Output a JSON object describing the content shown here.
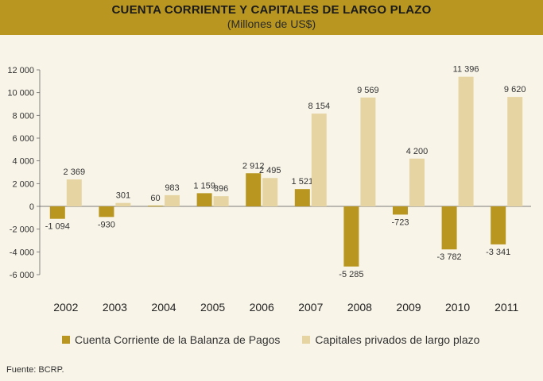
{
  "header": {
    "title": "CUENTA CORRIENTE Y CAPITALES DE LARGO PLAZO",
    "subtitle": "(Millones de US$)"
  },
  "source": "Fuente: BCRP.",
  "colors": {
    "cuenta_corriente": "#b8961f",
    "capitales": "#e6d5a3",
    "header_bg": "#b8961f",
    "background": "#f8f4e8"
  },
  "chart_data": {
    "type": "bar",
    "title": "CUENTA CORRIENTE Y CAPITALES DE LARGO PLAZO",
    "subtitle": "(Millones de US$)",
    "categories": [
      "2002",
      "2003",
      "2004",
      "2005",
      "2006",
      "2007",
      "2008",
      "2009",
      "2010",
      "2011"
    ],
    "series": [
      {
        "name": "Cuenta Corriente de la Balanza de Pagos",
        "values": [
          -1094,
          -930,
          60,
          1159,
          2912,
          1521,
          -5285,
          -723,
          -3782,
          -3341
        ],
        "labels": [
          "-1 094",
          "-930",
          "60",
          "1 159",
          "2 912",
          "1 521",
          "-5 285",
          "-723",
          "-3 782",
          "-3 341"
        ]
      },
      {
        "name": "Capitales privados de largo plazo",
        "values": [
          2369,
          301,
          983,
          896,
          2495,
          8154,
          9569,
          4200,
          11396,
          9620
        ],
        "labels": [
          "2 369",
          "301",
          "983",
          "896",
          "2 495",
          "8 154",
          "9 569",
          "4 200",
          "11 396",
          "9 620"
        ]
      }
    ],
    "ylim": [
      -6000,
      12000
    ],
    "yticks": [
      -6000,
      -4000,
      -2000,
      0,
      2000,
      4000,
      6000,
      8000,
      10000,
      12000
    ],
    "ytick_labels": [
      "-6 000",
      "-4 000",
      "-2 000",
      "0",
      "2 000",
      "4 000",
      "6 000",
      "8 000",
      "10 000",
      "12 000"
    ],
    "legend_position": "bottom",
    "grid": false
  }
}
